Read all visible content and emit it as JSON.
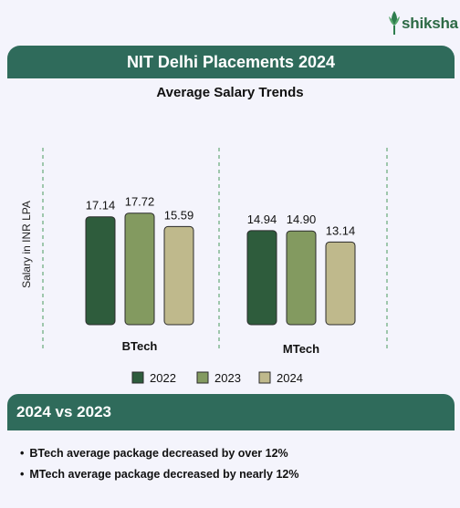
{
  "logo": {
    "text": "shiksha",
    "icon": "shiksha-leaf-logo"
  },
  "header": {
    "title": "NIT Delhi Placements 2024"
  },
  "chart_data": {
    "type": "bar",
    "title": "Average Salary Trends",
    "ylabel": "Salary in INR LPA",
    "xlabel": "",
    "categories": [
      "BTech",
      "MTech"
    ],
    "series": [
      {
        "name": "2022",
        "values": [
          17.14,
          14.94
        ],
        "labels": [
          "17.14",
          "14.94"
        ],
        "color": "#2e5c3c"
      },
      {
        "name": "2023",
        "values": [
          17.72,
          14.9
        ],
        "labels": [
          "17.72",
          "14.90"
        ],
        "color": "#839a60"
      },
      {
        "name": "2024",
        "values": [
          15.59,
          13.14
        ],
        "labels": [
          "15.59",
          "13.14"
        ],
        "color": "#bfb98c"
      }
    ],
    "legend_position": "bottom",
    "grid": false
  },
  "comparison": {
    "title": "2024 vs 2023",
    "points": [
      "BTech average package decreased by over 12%",
      "MTech average package decreased by nearly 12%"
    ]
  }
}
